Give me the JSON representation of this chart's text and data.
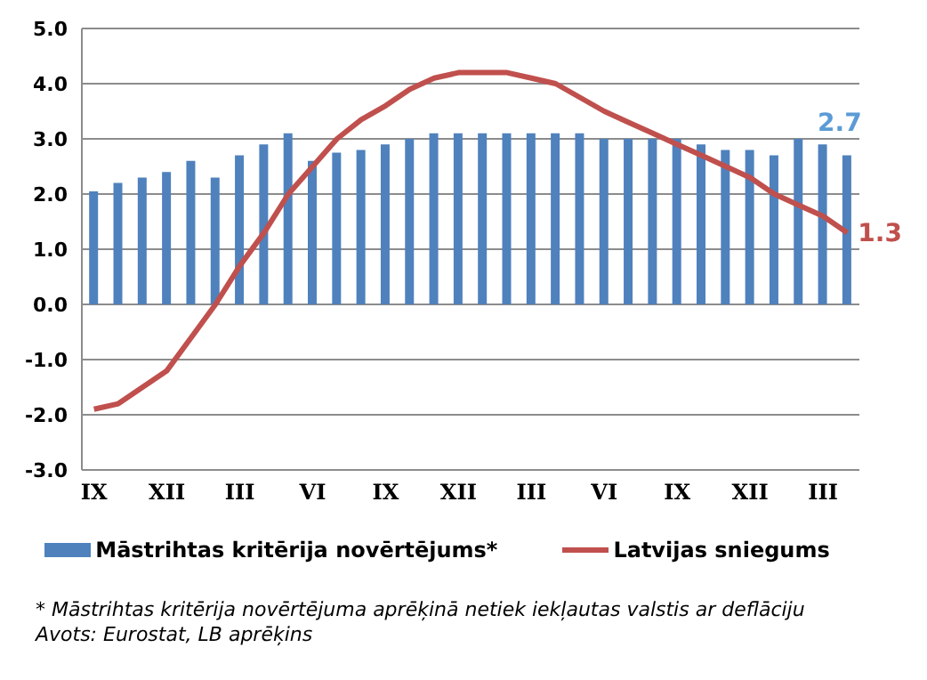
{
  "chart_data": {
    "type": "bar",
    "categories": [
      "IX",
      null,
      null,
      "XII",
      null,
      null,
      "III",
      null,
      null,
      "VI",
      null,
      null,
      "IX",
      null,
      null,
      "XII",
      null,
      null,
      "III",
      null,
      null,
      "VI",
      null,
      null,
      "IX",
      null,
      null,
      "XII",
      null,
      null,
      "III",
      null
    ],
    "series": [
      {
        "name": "Māstrihtas kritērija novērtējums*",
        "color": "#4f81bd",
        "values": [
          2.05,
          2.2,
          2.3,
          2.4,
          2.6,
          2.3,
          2.7,
          2.9,
          3.1,
          2.6,
          2.75,
          2.8,
          2.9,
          3.0,
          3.1,
          3.1,
          3.1,
          3.1,
          3.1,
          3.1,
          3.1,
          3.0,
          3.0,
          3.0,
          3.0,
          2.9,
          2.8,
          2.8,
          2.7,
          3.0,
          2.9,
          2.7
        ],
        "value_labels": [
          null,
          null,
          null,
          null,
          null,
          null,
          null,
          null,
          null,
          null,
          null,
          null,
          null,
          null,
          null,
          null,
          null,
          null,
          null,
          null,
          null,
          null,
          null,
          null,
          null,
          null,
          null,
          null,
          null,
          null,
          null,
          "2.7"
        ]
      },
      {
        "name": "Latvijas sniegums",
        "type": "line",
        "color": "#c0504d",
        "values": [
          -1.9,
          -1.8,
          -1.5,
          -1.2,
          -0.6,
          0.0,
          0.7,
          1.3,
          2.0,
          2.5,
          3.0,
          3.35,
          3.6,
          3.9,
          4.1,
          4.2,
          4.2,
          4.2,
          4.1,
          4.0,
          3.75,
          3.5,
          3.3,
          3.1,
          2.9,
          2.7,
          2.5,
          2.3,
          2.0,
          1.8,
          1.6,
          1.3
        ],
        "value_labels": [
          null,
          null,
          null,
          null,
          null,
          null,
          null,
          null,
          null,
          null,
          null,
          null,
          null,
          null,
          null,
          null,
          null,
          null,
          null,
          null,
          null,
          null,
          null,
          null,
          null,
          null,
          null,
          null,
          null,
          null,
          null,
          "1.3"
        ]
      }
    ],
    "ylim": [
      -3,
      5
    ],
    "yticks": [
      {
        "value": -3,
        "label": "-3.0"
      },
      {
        "value": -2,
        "label": "-2.0"
      },
      {
        "value": -1,
        "label": "-1.0"
      },
      {
        "value": 0,
        "label": "0.0"
      },
      {
        "value": 1,
        "label": "1.0"
      },
      {
        "value": 2,
        "label": "2.0"
      },
      {
        "value": 3,
        "label": "3.0"
      },
      {
        "value": 4,
        "label": "4.0"
      },
      {
        "value": 5,
        "label": "5.0"
      }
    ],
    "grid": "y",
    "legend": "bottom",
    "marker": "none",
    "line_style": "solid",
    "annotations": [
      "* Māstrihtas kritērija novērtējuma aprēķinā netiek iekļautas valstis ar deflāciju",
      "Avots: Eurostat, LB aprēķins"
    ]
  }
}
